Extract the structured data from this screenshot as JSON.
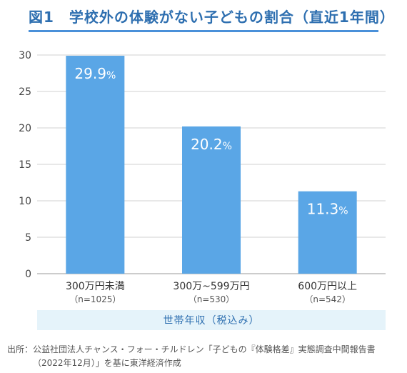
{
  "header": {
    "title": "図1　学校外の体験がない子どもの割合（直近1年間）"
  },
  "chart_data": {
    "type": "bar",
    "title": "図1　学校外の体験がない子どもの割合（直近1年間）",
    "categories": [
      "300万円未満",
      "300万~599万円",
      "600万円以上"
    ],
    "category_notes": [
      "（n=1025）",
      "（n=530）",
      "（n=542）"
    ],
    "values": [
      29.9,
      20.2,
      11.3
    ],
    "value_labels": [
      "29.9%",
      "20.2%",
      "11.3%"
    ],
    "xlabel": "世帯年収（税込み）",
    "ylabel": "",
    "ylim": [
      0,
      30
    ],
    "yticks": [
      0,
      5,
      10,
      15,
      20,
      25,
      30
    ],
    "grid": true,
    "bar_color": "#5aa6e6"
  },
  "source": {
    "line1": "出所：公益社団法人チャンス・フォー・チルドレン「子どもの『体験格差』実態調査中間報告書",
    "line2": "（2022年12月）」を基に東洋経済作成"
  }
}
